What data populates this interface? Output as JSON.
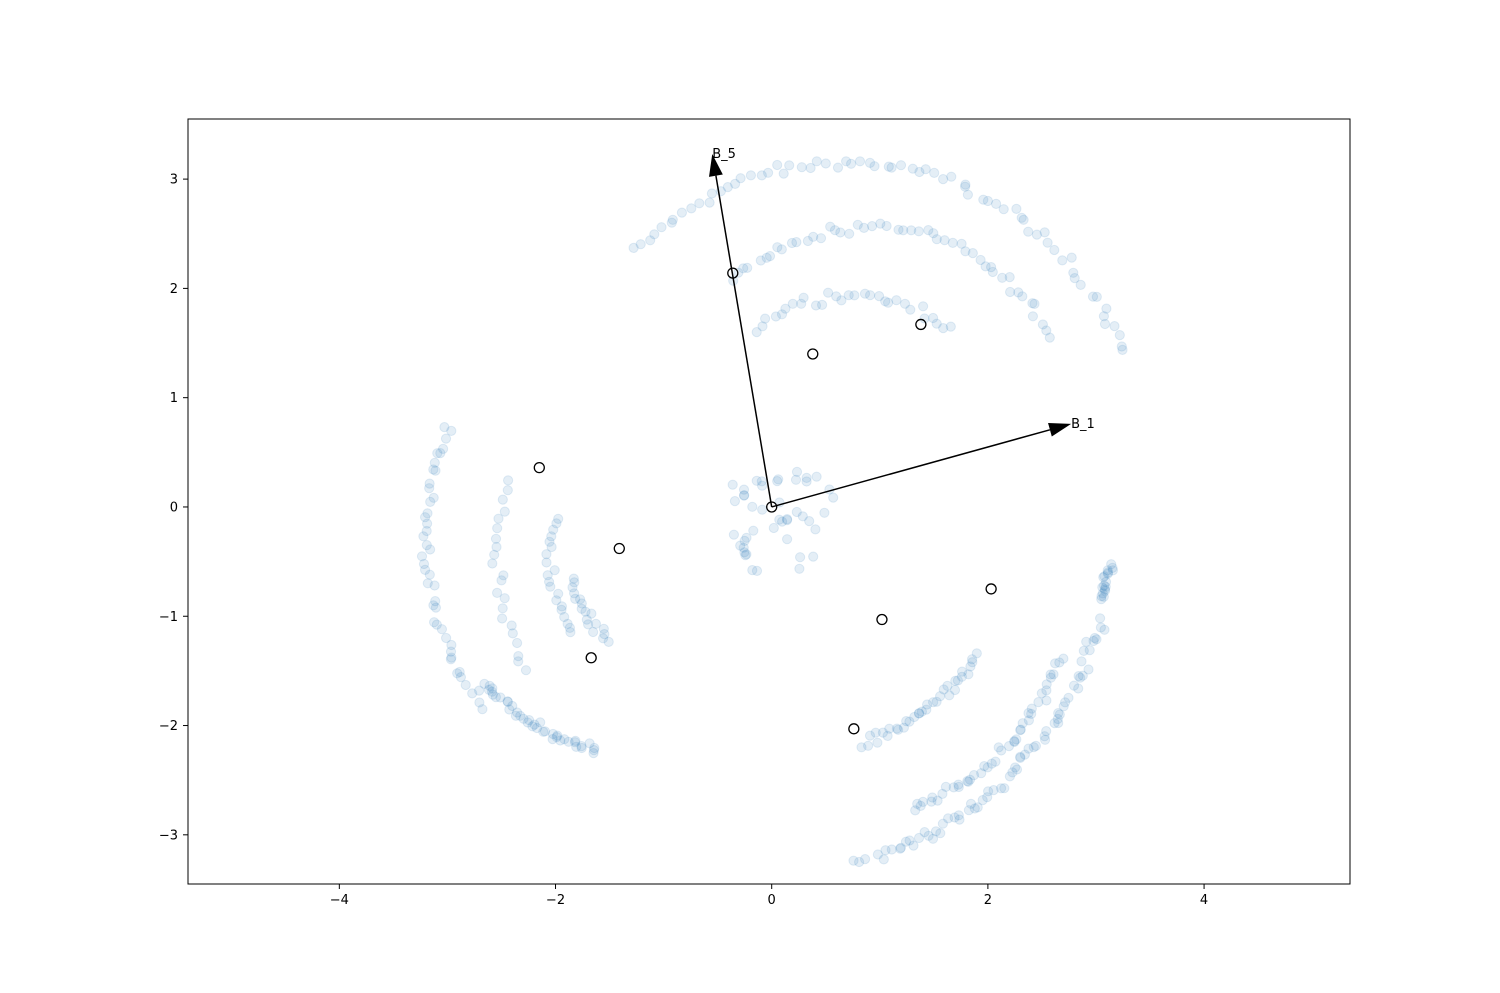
{
  "chart_data": {
    "type": "scatter",
    "title": "",
    "xlabel": "",
    "ylabel": "",
    "xlim": [
      -5.4,
      5.35
    ],
    "ylim": [
      -3.45,
      3.55
    ],
    "xticks": [
      -4,
      -2,
      0,
      2,
      4
    ],
    "yticks": [
      -3,
      -2,
      -1,
      0,
      1,
      2,
      3
    ],
    "xtick_labels": [
      "−4",
      "−2",
      "0",
      "2",
      "4"
    ],
    "ytick_labels": [
      "−3",
      "−2",
      "−1",
      "0",
      "1",
      "2",
      "3"
    ],
    "grid": false,
    "colors": {
      "points": "#1f77b4",
      "points_opacity": 0.12,
      "arrows": "#000000",
      "markers": "#000000"
    },
    "arrows": [
      {
        "name": "B_5",
        "label": "B_5",
        "from": [
          0,
          0
        ],
        "to": [
          -0.55,
          3.23
        ]
      },
      {
        "name": "B_1",
        "label": "B_1",
        "from": [
          0,
          0
        ],
        "to": [
          2.77,
          0.76
        ]
      }
    ],
    "highlighted_points": [
      [
        0.0,
        0.0
      ],
      [
        -0.36,
        2.14
      ],
      [
        0.38,
        1.4
      ],
      [
        1.38,
        1.67
      ],
      [
        -2.15,
        0.36
      ],
      [
        -1.41,
        -0.38
      ],
      [
        -1.67,
        -1.38
      ],
      [
        1.02,
        -1.03
      ],
      [
        2.03,
        -0.75
      ],
      [
        0.76,
        -2.03
      ]
    ],
    "clusters": [
      {
        "name": "upper",
        "arcs": [
          {
            "center": [
              0.7,
              0.4
            ],
            "radius": 2.75,
            "from_deg": 135,
            "to_deg": 22,
            "count": 70
          },
          {
            "center": [
              0.9,
              0.6
            ],
            "radius": 1.95,
            "from_deg": 130,
            "to_deg": 30,
            "count": 50
          },
          {
            "center": [
              0.75,
              0.55
            ],
            "radius": 1.4,
            "from_deg": 130,
            "to_deg": 50,
            "count": 30
          }
        ]
      },
      {
        "name": "left",
        "arcs": [
          {
            "center": [
              -0.7,
              -0.3
            ],
            "radius": 2.5,
            "from_deg": 155,
            "to_deg": 218,
            "count": 45
          },
          {
            "center": [
              -0.6,
              -0.45
            ],
            "radius": 1.95,
            "from_deg": 160,
            "to_deg": 212,
            "count": 22
          },
          {
            "center": [
              -1.1,
              -0.2
            ],
            "radius": 2.1,
            "from_deg": 222,
            "to_deg": 256,
            "count": 40
          },
          {
            "center": [
              -0.9,
              -0.5
            ],
            "radius": 1.15,
            "from_deg": 160,
            "to_deg": 215,
            "count": 20
          },
          {
            "center": [
              -0.9,
              -0.5
            ],
            "radius": 0.95,
            "from_deg": 190,
            "to_deg": 230,
            "count": 18
          }
        ]
      },
      {
        "name": "lower-right",
        "arcs": [
          {
            "center": [
              0.0,
              -0.2
            ],
            "radius": 3.15,
            "from_deg": 285,
            "to_deg": 345,
            "count": 70
          },
          {
            "center": [
              0.2,
              -0.1
            ],
            "radius": 2.95,
            "from_deg": 345,
            "to_deg": 352,
            "count": 18
          },
          {
            "center": [
              0.5,
              -0.6
            ],
            "radius": 2.3,
            "from_deg": 290,
            "to_deg": 340,
            "count": 45
          },
          {
            "center": [
              0.4,
              -0.5
            ],
            "radius": 1.7,
            "from_deg": 285,
            "to_deg": 330,
            "count": 35
          }
        ]
      },
      {
        "name": "center",
        "blob": {
          "center": [
            0.1,
            -0.1
          ],
          "rx": 0.6,
          "ry": 0.55,
          "count": 45
        }
      }
    ]
  }
}
